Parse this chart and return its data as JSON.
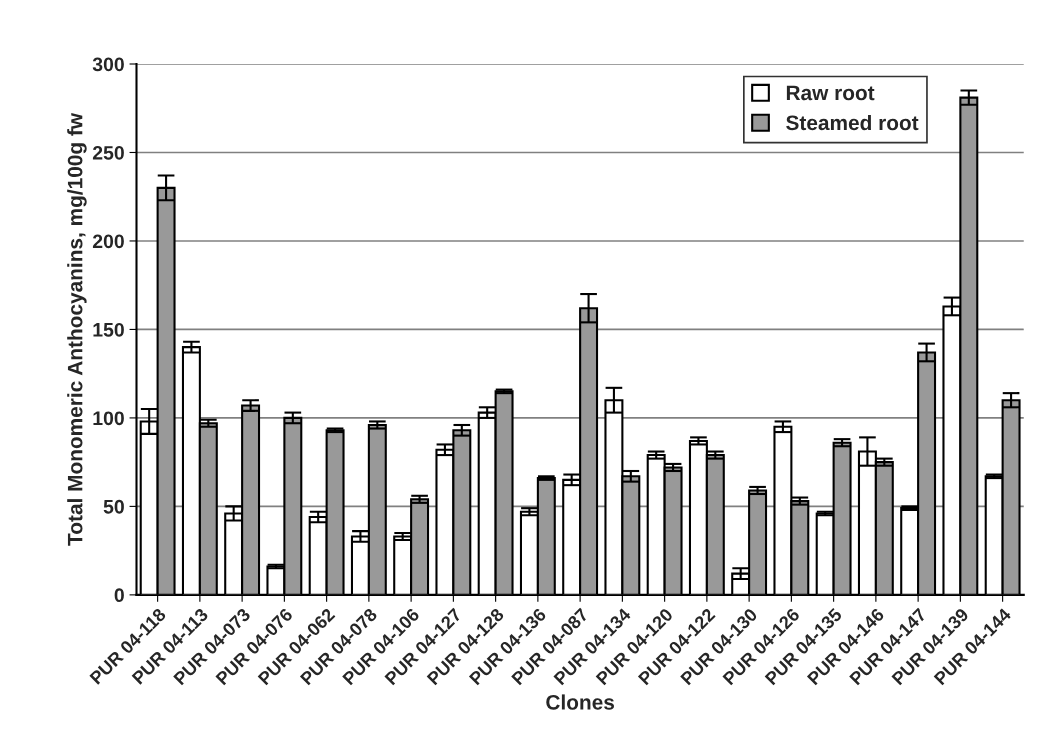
{
  "chart_data": {
    "type": "bar",
    "xlabel": "Clones",
    "ylabel": "Total Monomeric Anthocyanins, mg/100g fw",
    "categories": [
      "PUR 04-118",
      "PUR 04-113",
      "PUR 04-073",
      "PUR 04-076",
      "PUR 04-062",
      "PUR 04-078",
      "PUR 04-106",
      "PUR 04-127",
      "PUR 04-128",
      "PUR 04-136",
      "PUR 04-087",
      "PUR 04-134",
      "PUR 04-120",
      "PUR 04-122",
      "PUR 04-130",
      "PUR 04-126",
      "PUR 04-135",
      "PUR 04-146",
      "PUR 04-147",
      "PUR 04-139",
      "PUR 04-144"
    ],
    "series": [
      {
        "name": "Raw root",
        "color": "#ffffff",
        "values": [
          98,
          140,
          46,
          16,
          44,
          33,
          33,
          82,
          103,
          47,
          65,
          110,
          79,
          87,
          12,
          95,
          46,
          81,
          49,
          163,
          67
        ],
        "errors": [
          7,
          3,
          4,
          1,
          3,
          3,
          2,
          3,
          3,
          2,
          3,
          7,
          2,
          2,
          3,
          3,
          1,
          8,
          1,
          5,
          1
        ]
      },
      {
        "name": "Steamed root",
        "color": "#999999",
        "values": [
          230,
          97,
          107,
          100,
          93,
          96,
          54,
          93,
          115,
          66,
          162,
          67,
          72,
          79,
          59,
          53,
          86,
          75,
          137,
          281,
          110
        ],
        "errors": [
          7,
          2,
          3,
          3,
          1,
          2,
          2,
          3,
          1,
          1,
          8,
          3,
          2,
          2,
          2,
          2,
          2,
          2,
          5,
          4,
          4
        ]
      }
    ],
    "ylim": [
      0,
      300
    ],
    "yticks": [
      0,
      50,
      100,
      150,
      200,
      250,
      300
    ],
    "grid": "y",
    "legend": "top right"
  }
}
